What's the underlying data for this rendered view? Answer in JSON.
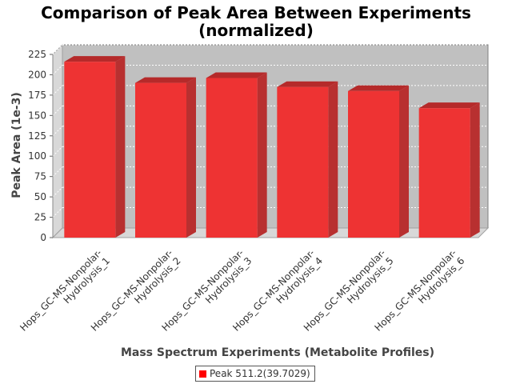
{
  "chart_data": {
    "type": "bar",
    "title_lines": [
      "Comparison of Peak Area Between Experiments",
      "(normalized)"
    ],
    "xlabel": "Mass Spectrum Experiments (Metabolite Profiles)",
    "ylabel": "Peak Area (1e-3)",
    "ylim": [
      0,
      225
    ],
    "yticks": [
      0,
      25,
      50,
      75,
      100,
      125,
      150,
      175,
      200,
      225
    ],
    "categories": [
      [
        "Hops_GC-MS-Nonpolar-",
        "Hydrolysis_1"
      ],
      [
        "Hops_GC-MS-Nonpolar-",
        "Hydrolysis_2"
      ],
      [
        "Hops_GC-MS-Nonpolar-",
        "Hydrolysis_3"
      ],
      [
        "Hops_GC-MS-Nonpolar-",
        "Hydrolysis_4"
      ],
      [
        "Hops_GC-MS-Nonpolar-",
        "Hydrolysis_5"
      ],
      [
        "Hops_GC-MS-Nonpolar-",
        "Hydrolysis_6"
      ]
    ],
    "series": [
      {
        "name": "Peak 511.2(39.7029)",
        "values": [
          216,
          190,
          196,
          185,
          180,
          159
        ]
      }
    ],
    "bar_color": "#ee3333",
    "bar_top_color": "#b52a2a",
    "bar_side_color": "#b83030",
    "grid": true,
    "legend_position": "bottom"
  }
}
